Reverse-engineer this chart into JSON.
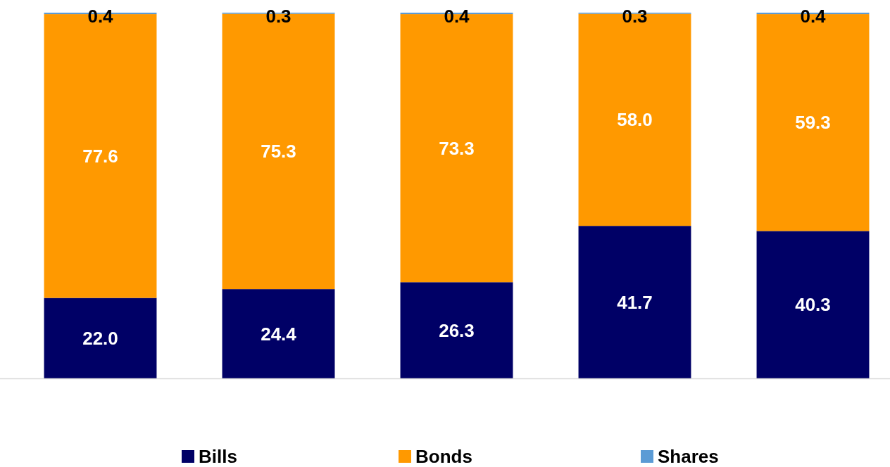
{
  "chart_data": {
    "type": "bar",
    "stacked": true,
    "categories": [
      null,
      null,
      null,
      null,
      null
    ],
    "ylim": [
      0,
      100
    ],
    "legend": "bottom",
    "series": [
      {
        "name": "Bills",
        "color": "#000066",
        "values": [
          22.0,
          24.4,
          26.3,
          41.7,
          40.3
        ],
        "value_labels": [
          "22.0",
          "24.4",
          "26.3",
          "41.7",
          "40.3"
        ]
      },
      {
        "name": "Bonds",
        "color": "#ff9900",
        "values": [
          77.6,
          75.3,
          73.3,
          58.0,
          59.3
        ],
        "value_labels": [
          "77.6",
          "75.3",
          "73.3",
          "58.0",
          "59.3"
        ]
      },
      {
        "name": "Shares",
        "color": "#5b9bd5",
        "values": [
          0.4,
          0.3,
          0.4,
          0.3,
          0.4
        ],
        "value_labels": [
          "0.4",
          "0.3",
          "0.4",
          "0.3",
          "0.4"
        ]
      }
    ]
  }
}
